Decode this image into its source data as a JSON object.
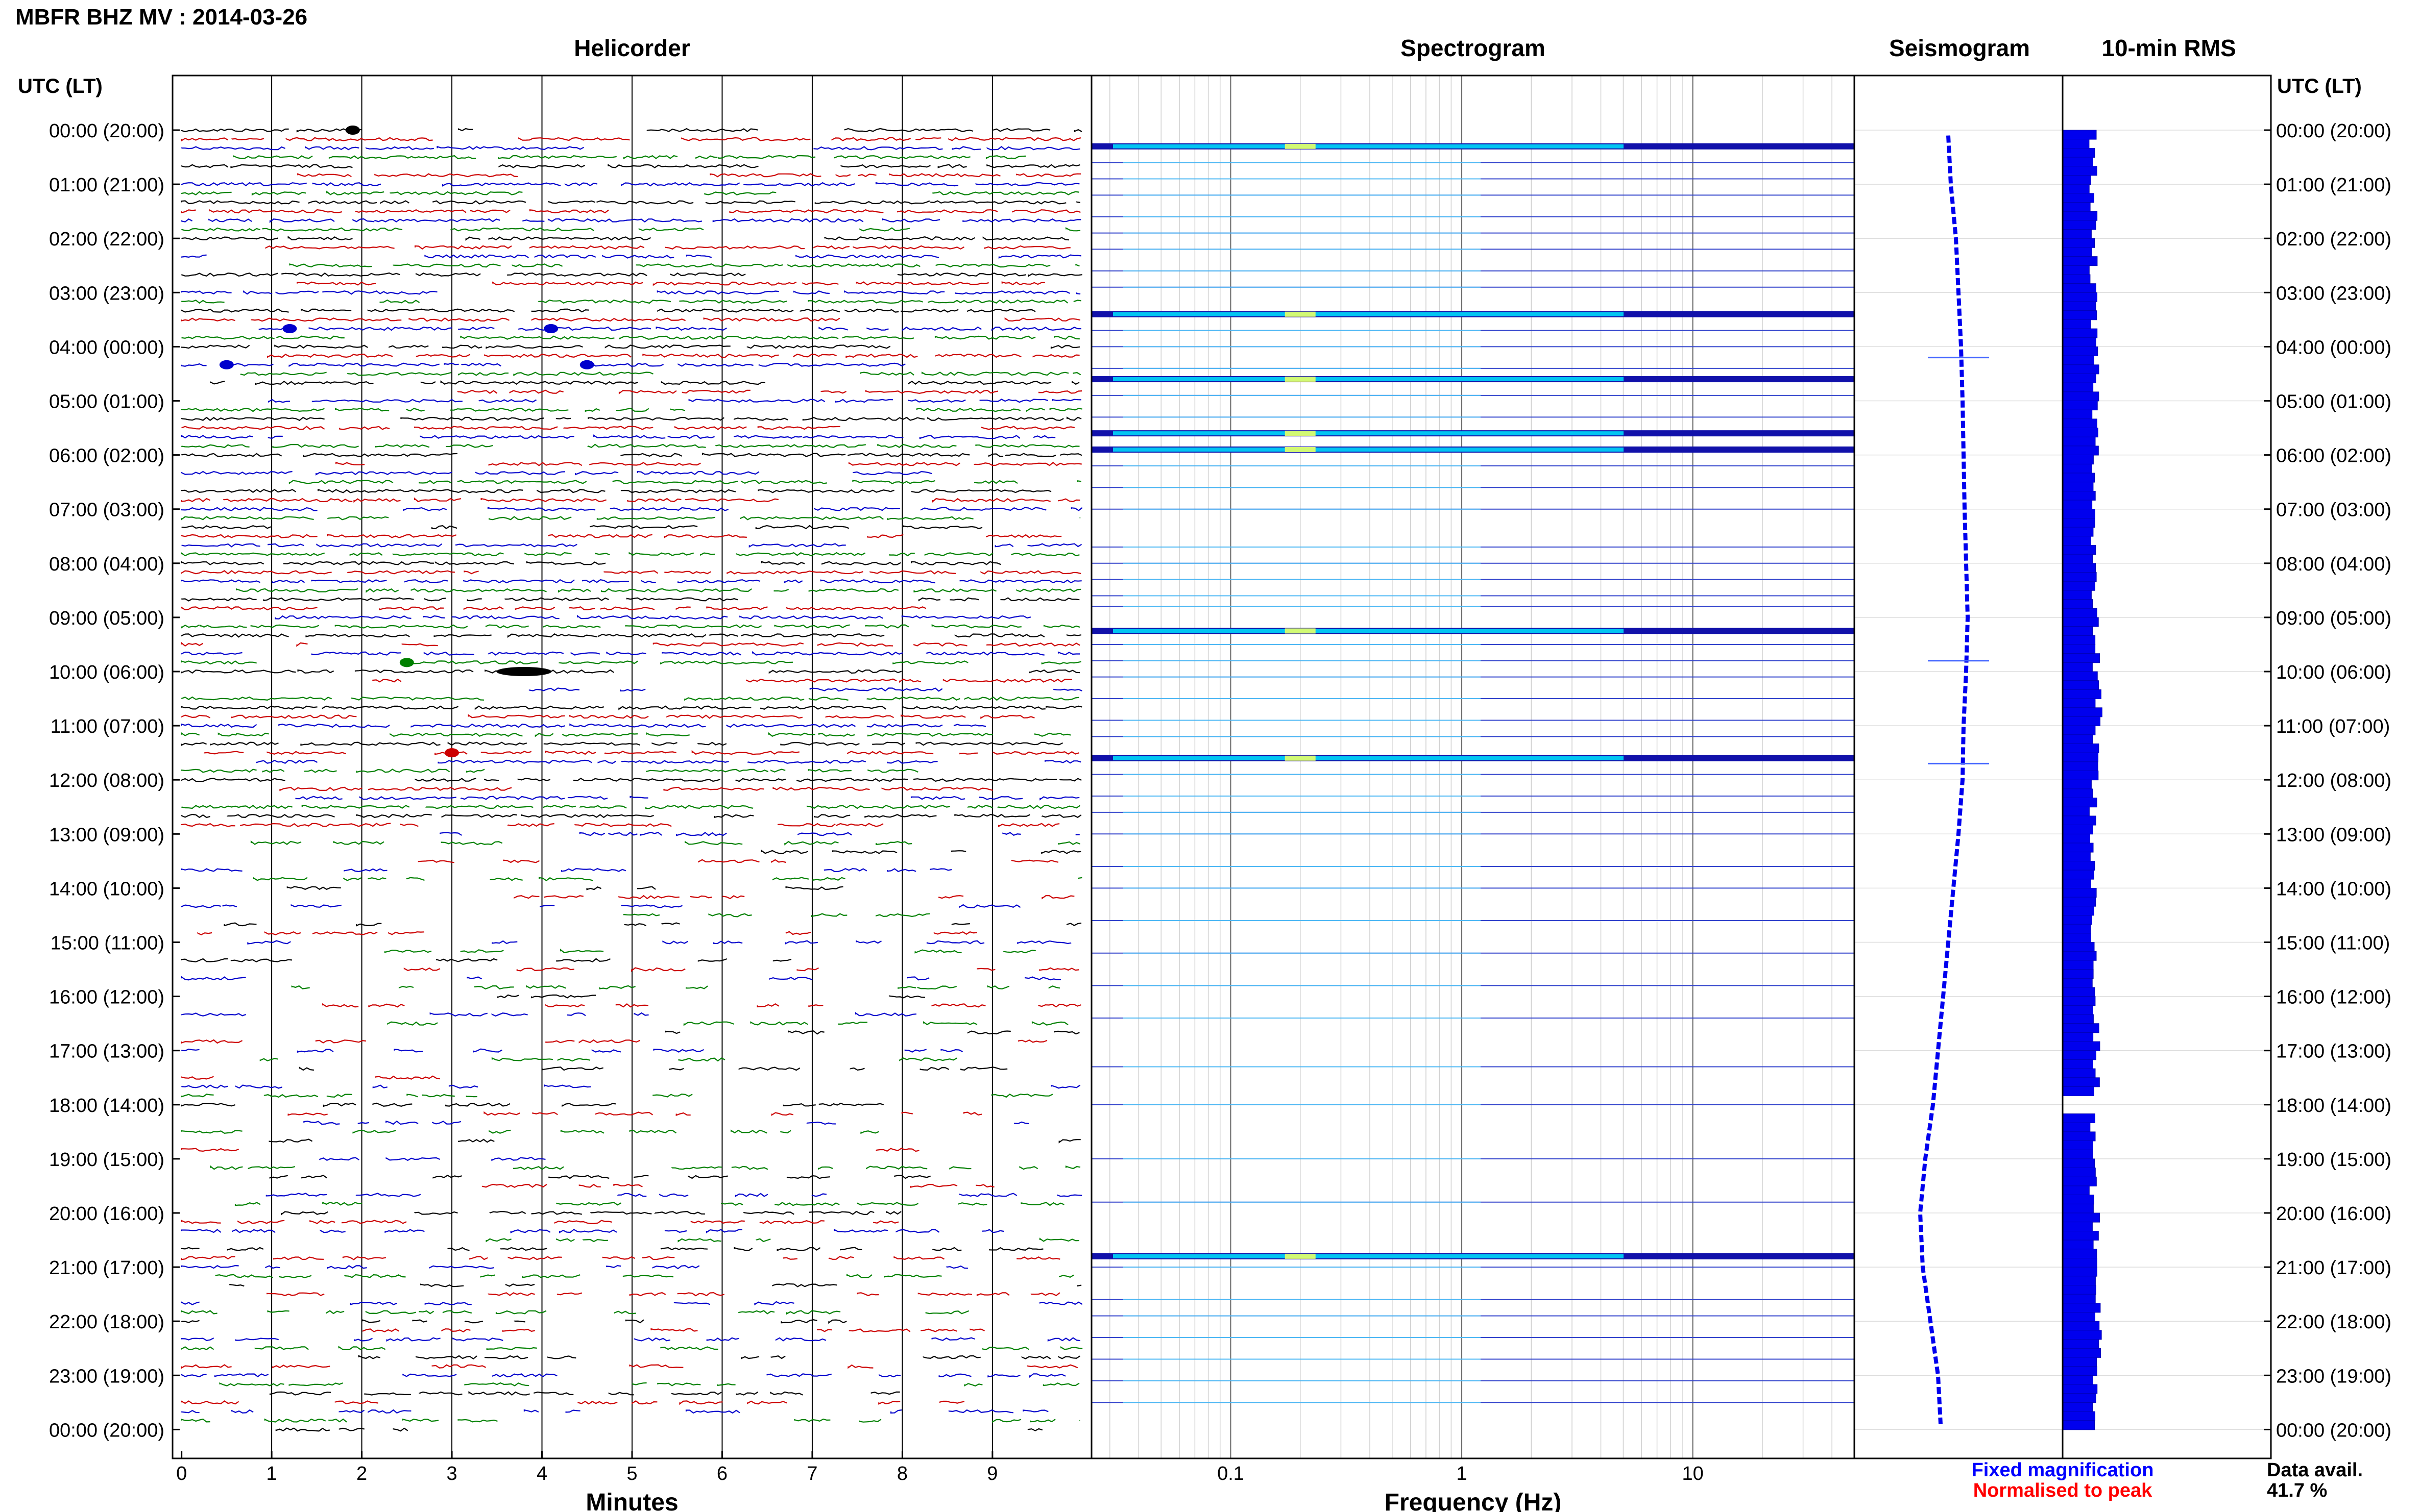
{
  "header": {
    "title": "MBFR BHZ MV : 2014-03-26"
  },
  "panels": {
    "helicorder": {
      "title": "Helicorder",
      "xlabel": "Minutes"
    },
    "spectrogram": {
      "title": "Spectrogram",
      "xlabel": "Frequency (Hz)"
    },
    "seismogram": {
      "title": "Seismogram"
    },
    "rms": {
      "title": "10-min RMS"
    }
  },
  "axes": {
    "left_label": "UTC (LT)",
    "right_label": "UTC (LT)"
  },
  "legend": {
    "fixed": "Fixed magnification",
    "normalised": "Normalised to peak",
    "fixed_color": "#0000ff",
    "normalised_color": "#ff0000",
    "avail_label": "Data avail.",
    "avail_value": "41.7 %"
  },
  "colors": {
    "trace_cycle": [
      "#000000",
      "#cc0000",
      "#0000cc",
      "#008000"
    ],
    "rms_bar": "#0000ee",
    "spec_line": "#1111aa",
    "spec_hot": "#00e5ff"
  },
  "chart_data": [
    {
      "type": "line",
      "title": "Helicorder",
      "xlabel": "Minutes",
      "xlim": [
        -0.1,
        10.1
      ],
      "xticks": [
        "0",
        "1",
        "2",
        "3",
        "4",
        "5",
        "6",
        "7",
        "8",
        "9"
      ],
      "ylim_hours": [
        0,
        24
      ],
      "rows_per_hour": 6,
      "event_rows_minutes": [
        {
          "row": 0,
          "minute": 1.9
        },
        {
          "row": 22,
          "minute": 1.2
        },
        {
          "row": 22,
          "minute": 4.1
        },
        {
          "row": 26,
          "minute": 0.5
        },
        {
          "row": 26,
          "minute": 4.5
        },
        {
          "row": 59,
          "minute": 2.5
        },
        {
          "row": 60,
          "minute": 3.8
        },
        {
          "row": 69,
          "minute": 3.0
        }
      ]
    },
    {
      "type": "heatmap",
      "title": "Spectrogram",
      "xlabel": "Frequency (Hz)",
      "xscale": "log",
      "xlim": [
        0.025,
        50
      ],
      "xticks": [
        "0.1",
        "1",
        "10"
      ],
      "strong_rows_hours": [
        0.3,
        3.4,
        4.6,
        5.6,
        5.9,
        9.25,
        11.6,
        20.8
      ],
      "weak_rows_hours": [
        0.6,
        0.9,
        1.2,
        1.6,
        1.9,
        2.2,
        2.6,
        2.9,
        3.7,
        4.0,
        4.4,
        4.9,
        5.3,
        6.2,
        6.6,
        7.0,
        7.7,
        8.0,
        8.3,
        8.6,
        8.8,
        9.5,
        9.8,
        10.1,
        10.5,
        10.9,
        11.2,
        11.9,
        12.3,
        12.6,
        13.0,
        13.6,
        14.0,
        14.6,
        15.2,
        15.8,
        16.4,
        17.3,
        18.0,
        19.0,
        19.8,
        21.0,
        21.6,
        21.9,
        22.3,
        22.7,
        23.1,
        23.5
      ]
    },
    {
      "type": "scatter",
      "title": "Seismogram",
      "points": [
        [
          0.1,
          -2
        ],
        [
          1,
          -1.5
        ],
        [
          2,
          -0.5
        ],
        [
          3,
          0
        ],
        [
          4,
          0.5
        ],
        [
          5,
          0.8
        ],
        [
          6,
          1
        ],
        [
          7,
          1.2
        ],
        [
          8,
          1.5
        ],
        [
          9,
          1.8
        ],
        [
          10,
          1.5
        ],
        [
          11,
          1
        ],
        [
          12,
          0.8
        ],
        [
          13,
          0
        ],
        [
          14,
          -1
        ],
        [
          15,
          -2
        ],
        [
          16,
          -3
        ],
        [
          17,
          -4
        ],
        [
          18,
          -5
        ],
        [
          19,
          -6.5
        ],
        [
          20,
          -7.5
        ],
        [
          21,
          -7
        ],
        [
          22,
          -5.5
        ],
        [
          23,
          -4
        ],
        [
          23.9,
          -3.5
        ]
      ],
      "spikes_hours": [
        4.2,
        9.8,
        11.7
      ]
    },
    {
      "type": "bar",
      "title": "10-min RMS",
      "orientation": "horizontal",
      "hourly_rms": [
        6,
        6,
        6,
        6,
        6.5,
        6.5,
        6.5,
        6,
        6,
        6.5,
        7,
        6.5,
        6,
        6,
        6,
        6,
        6.5,
        6.5,
        6,
        6,
        6.5,
        7,
        7,
        6.5
      ],
      "gap_hours": [
        17.8,
        18.1
      ]
    }
  ]
}
